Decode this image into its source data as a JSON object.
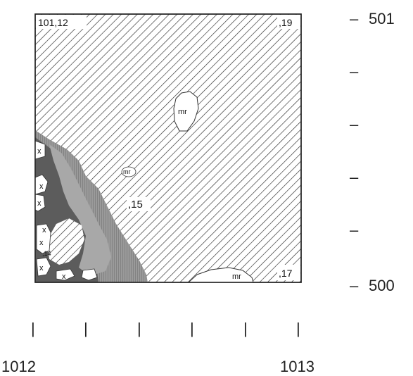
{
  "map": {
    "corner_labels": {
      "top_left": "101,12",
      "top_right": ",19",
      "bottom_right": ",17",
      "center": ",15",
      "lower_left_small": ",14"
    },
    "feature_labels": {
      "mr": "mr",
      "x": "x"
    },
    "fill_colors": {
      "hatch_line": "#2a2a2a",
      "light_grey": "#a8a8a8",
      "dark_grey": "#5c5c5c",
      "white": "#ffffff"
    }
  },
  "axes": {
    "y_axis": {
      "top_label": "501",
      "bottom_label": "500",
      "tick_mark": "–"
    },
    "x_axis": {
      "left_label": "1012",
      "right_label": "1013",
      "tick_mark": "|"
    }
  }
}
